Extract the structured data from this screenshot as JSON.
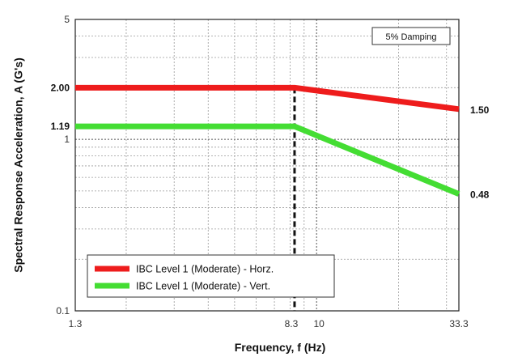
{
  "chart_data": {
    "type": "line",
    "xlabel": "Frequency, f (Hz)",
    "ylabel": "Spectral Response Acceleration, A (G's)",
    "xscale": "log",
    "yscale": "log",
    "xlim": [
      1.3,
      33.3
    ],
    "ylim": [
      0.1,
      5
    ],
    "x_ticks": [
      {
        "value": 1.3,
        "label": "1.3"
      },
      {
        "value": 8.3,
        "label": "8.3"
      },
      {
        "value": 10,
        "label": "10"
      },
      {
        "value": 33.3,
        "label": "33.3"
      }
    ],
    "y_ticks": [
      {
        "value": 0.1,
        "label": "0.1",
        "bold": false
      },
      {
        "value": 1,
        "label": "1",
        "bold": false
      },
      {
        "value": 1.19,
        "label": "1.19",
        "bold": true
      },
      {
        "value": 2.0,
        "label": "2.00",
        "bold": true
      },
      {
        "value": 5,
        "label": "5",
        "bold": false
      }
    ],
    "grid": true,
    "annotation_box": "5% Damping",
    "vertical_marker_x": 8.3,
    "series": [
      {
        "name": "IBC Level 1 (Moderate) - Horz.",
        "color": "#ee1c1c",
        "x": [
          1.3,
          8.3,
          33.3
        ],
        "y": [
          2.0,
          2.0,
          1.5
        ],
        "end_label": "1.50"
      },
      {
        "name": "IBC Level 1 (Moderate) - Vert.",
        "color": "#44dd33",
        "x": [
          1.3,
          8.3,
          33.3
        ],
        "y": [
          1.19,
          1.19,
          0.48
        ],
        "end_label": "0.48"
      }
    ],
    "legend_position": "bottom-left"
  }
}
